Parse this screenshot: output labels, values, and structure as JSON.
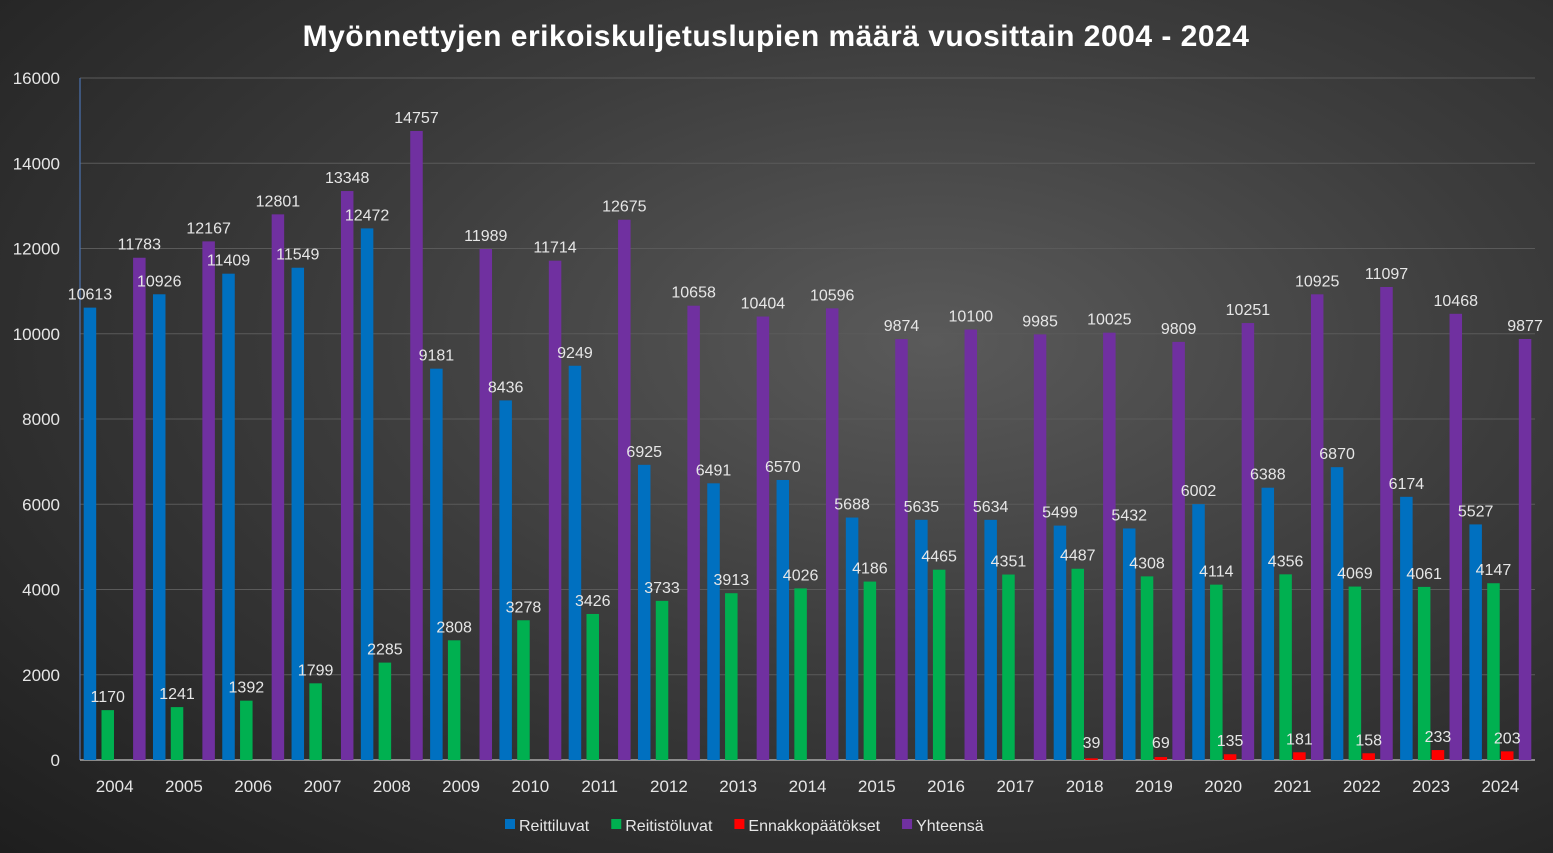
{
  "chart_data": {
    "type": "bar",
    "title": "Myönnettyjen erikoiskuljetuslupien määrä vuosittain 2004 - 2024",
    "xlabel": "",
    "ylabel": "",
    "ylim": [
      0,
      16000
    ],
    "yticks": [
      0,
      2000,
      4000,
      6000,
      8000,
      10000,
      12000,
      14000,
      16000
    ],
    "grid": true,
    "legend_position": "bottom",
    "categories": [
      "2004",
      "2005",
      "2006",
      "2007",
      "2008",
      "2009",
      "2010",
      "2011",
      "2012",
      "2013",
      "2014",
      "2015",
      "2016",
      "2017",
      "2018",
      "2019",
      "2020",
      "2021",
      "2022",
      "2023",
      "2024"
    ],
    "series": [
      {
        "name": "Reittiluvat",
        "color": "#0070c0",
        "values": [
          10613,
          10926,
          11409,
          11549,
          12472,
          9181,
          8436,
          9249,
          6925,
          6491,
          6570,
          5688,
          5635,
          5634,
          5499,
          5432,
          6002,
          6388,
          6870,
          6174,
          5527
        ]
      },
      {
        "name": "Reitistöluvat",
        "color": "#00b050",
        "values": [
          1170,
          1241,
          1392,
          1799,
          2285,
          2808,
          3278,
          3426,
          3733,
          3913,
          4026,
          4186,
          4465,
          4351,
          4487,
          4308,
          4114,
          4356,
          4069,
          4061,
          4147
        ]
      },
      {
        "name": "Ennakkopäätökset",
        "color": "#ff0000",
        "values": [
          null,
          null,
          null,
          null,
          null,
          null,
          null,
          null,
          null,
          null,
          null,
          null,
          null,
          null,
          39,
          69,
          135,
          181,
          158,
          233,
          203
        ]
      },
      {
        "name": "Yhteensä",
        "color": "#7030a0",
        "values": [
          11783,
          12167,
          12801,
          13348,
          14757,
          11989,
          11714,
          12675,
          10658,
          10404,
          10596,
          9874,
          10100,
          9985,
          10025,
          9809,
          10251,
          10925,
          11097,
          10468,
          9877
        ]
      }
    ]
  }
}
